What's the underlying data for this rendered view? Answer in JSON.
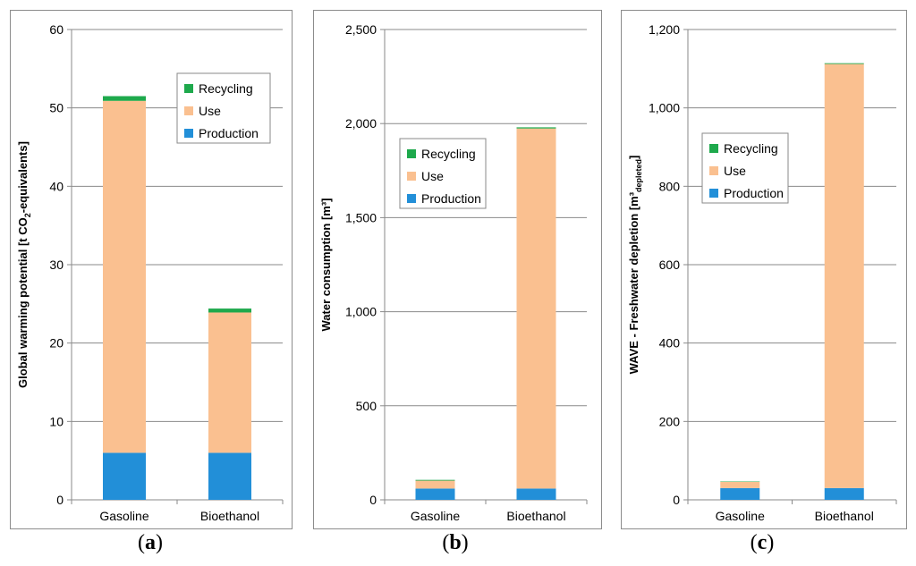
{
  "colors": {
    "production": "#228fd8",
    "use": "#fac090",
    "recycling": "#1ea94c"
  },
  "captions": {
    "a": "a",
    "b": "b",
    "c": "c"
  },
  "chart_data": [
    {
      "type": "bar",
      "stacked": true,
      "categories": [
        "Gasoline",
        "Bioethanol"
      ],
      "series": [
        {
          "name": "Production",
          "values": [
            6.0,
            6.0
          ]
        },
        {
          "name": "Use",
          "values": [
            44.9,
            17.9
          ]
        },
        {
          "name": "Recycling",
          "values": [
            0.6,
            0.5
          ]
        }
      ],
      "legend_order": [
        "Recycling",
        "Use",
        "Production"
      ],
      "ylabel_parts": [
        "Global warming potential [t CO",
        "2",
        "-equivalents]"
      ],
      "ylim": [
        0,
        60
      ],
      "yticks": [
        0,
        10,
        20,
        30,
        40,
        50,
        60
      ],
      "ytick_labels": [
        "0",
        "10",
        "20",
        "30",
        "40",
        "50",
        "60"
      ],
      "grid": true,
      "legend_position": "top-right"
    },
    {
      "type": "bar",
      "stacked": true,
      "categories": [
        "Gasoline",
        "Bioethanol"
      ],
      "series": [
        {
          "name": "Production",
          "values": [
            60,
            60
          ]
        },
        {
          "name": "Use",
          "values": [
            42,
            1914
          ]
        },
        {
          "name": "Recycling",
          "values": [
            4,
            6
          ]
        }
      ],
      "legend_order": [
        "Recycling",
        "Use",
        "Production"
      ],
      "ylabel_parts": [
        "Water consumption [m³]"
      ],
      "ylim": [
        0,
        2500
      ],
      "yticks": [
        0,
        500,
        1000,
        1500,
        2000,
        2500
      ],
      "ytick_labels": [
        "0",
        "500",
        "1,000",
        "1,500",
        "2,000",
        "2,500"
      ],
      "grid": true,
      "legend_position": "middle-left"
    },
    {
      "type": "bar",
      "stacked": true,
      "categories": [
        "Gasoline",
        "Bioethanol"
      ],
      "series": [
        {
          "name": "Production",
          "values": [
            30,
            30
          ]
        },
        {
          "name": "Use",
          "values": [
            16,
            1082
          ]
        },
        {
          "name": "Recycling",
          "values": [
            1,
            2
          ]
        }
      ],
      "legend_order": [
        "Recycling",
        "Use",
        "Production"
      ],
      "ylabel_parts": [
        "WAVE - Freshwater depletion [m³",
        "depleted",
        "]"
      ],
      "ylim": [
        0,
        1200
      ],
      "yticks": [
        0,
        200,
        400,
        600,
        800,
        1000,
        1200
      ],
      "ytick_labels": [
        "0",
        "200",
        "400",
        "600",
        "800",
        "1,000",
        "1,200"
      ],
      "grid": true,
      "legend_position": "top-right"
    }
  ]
}
